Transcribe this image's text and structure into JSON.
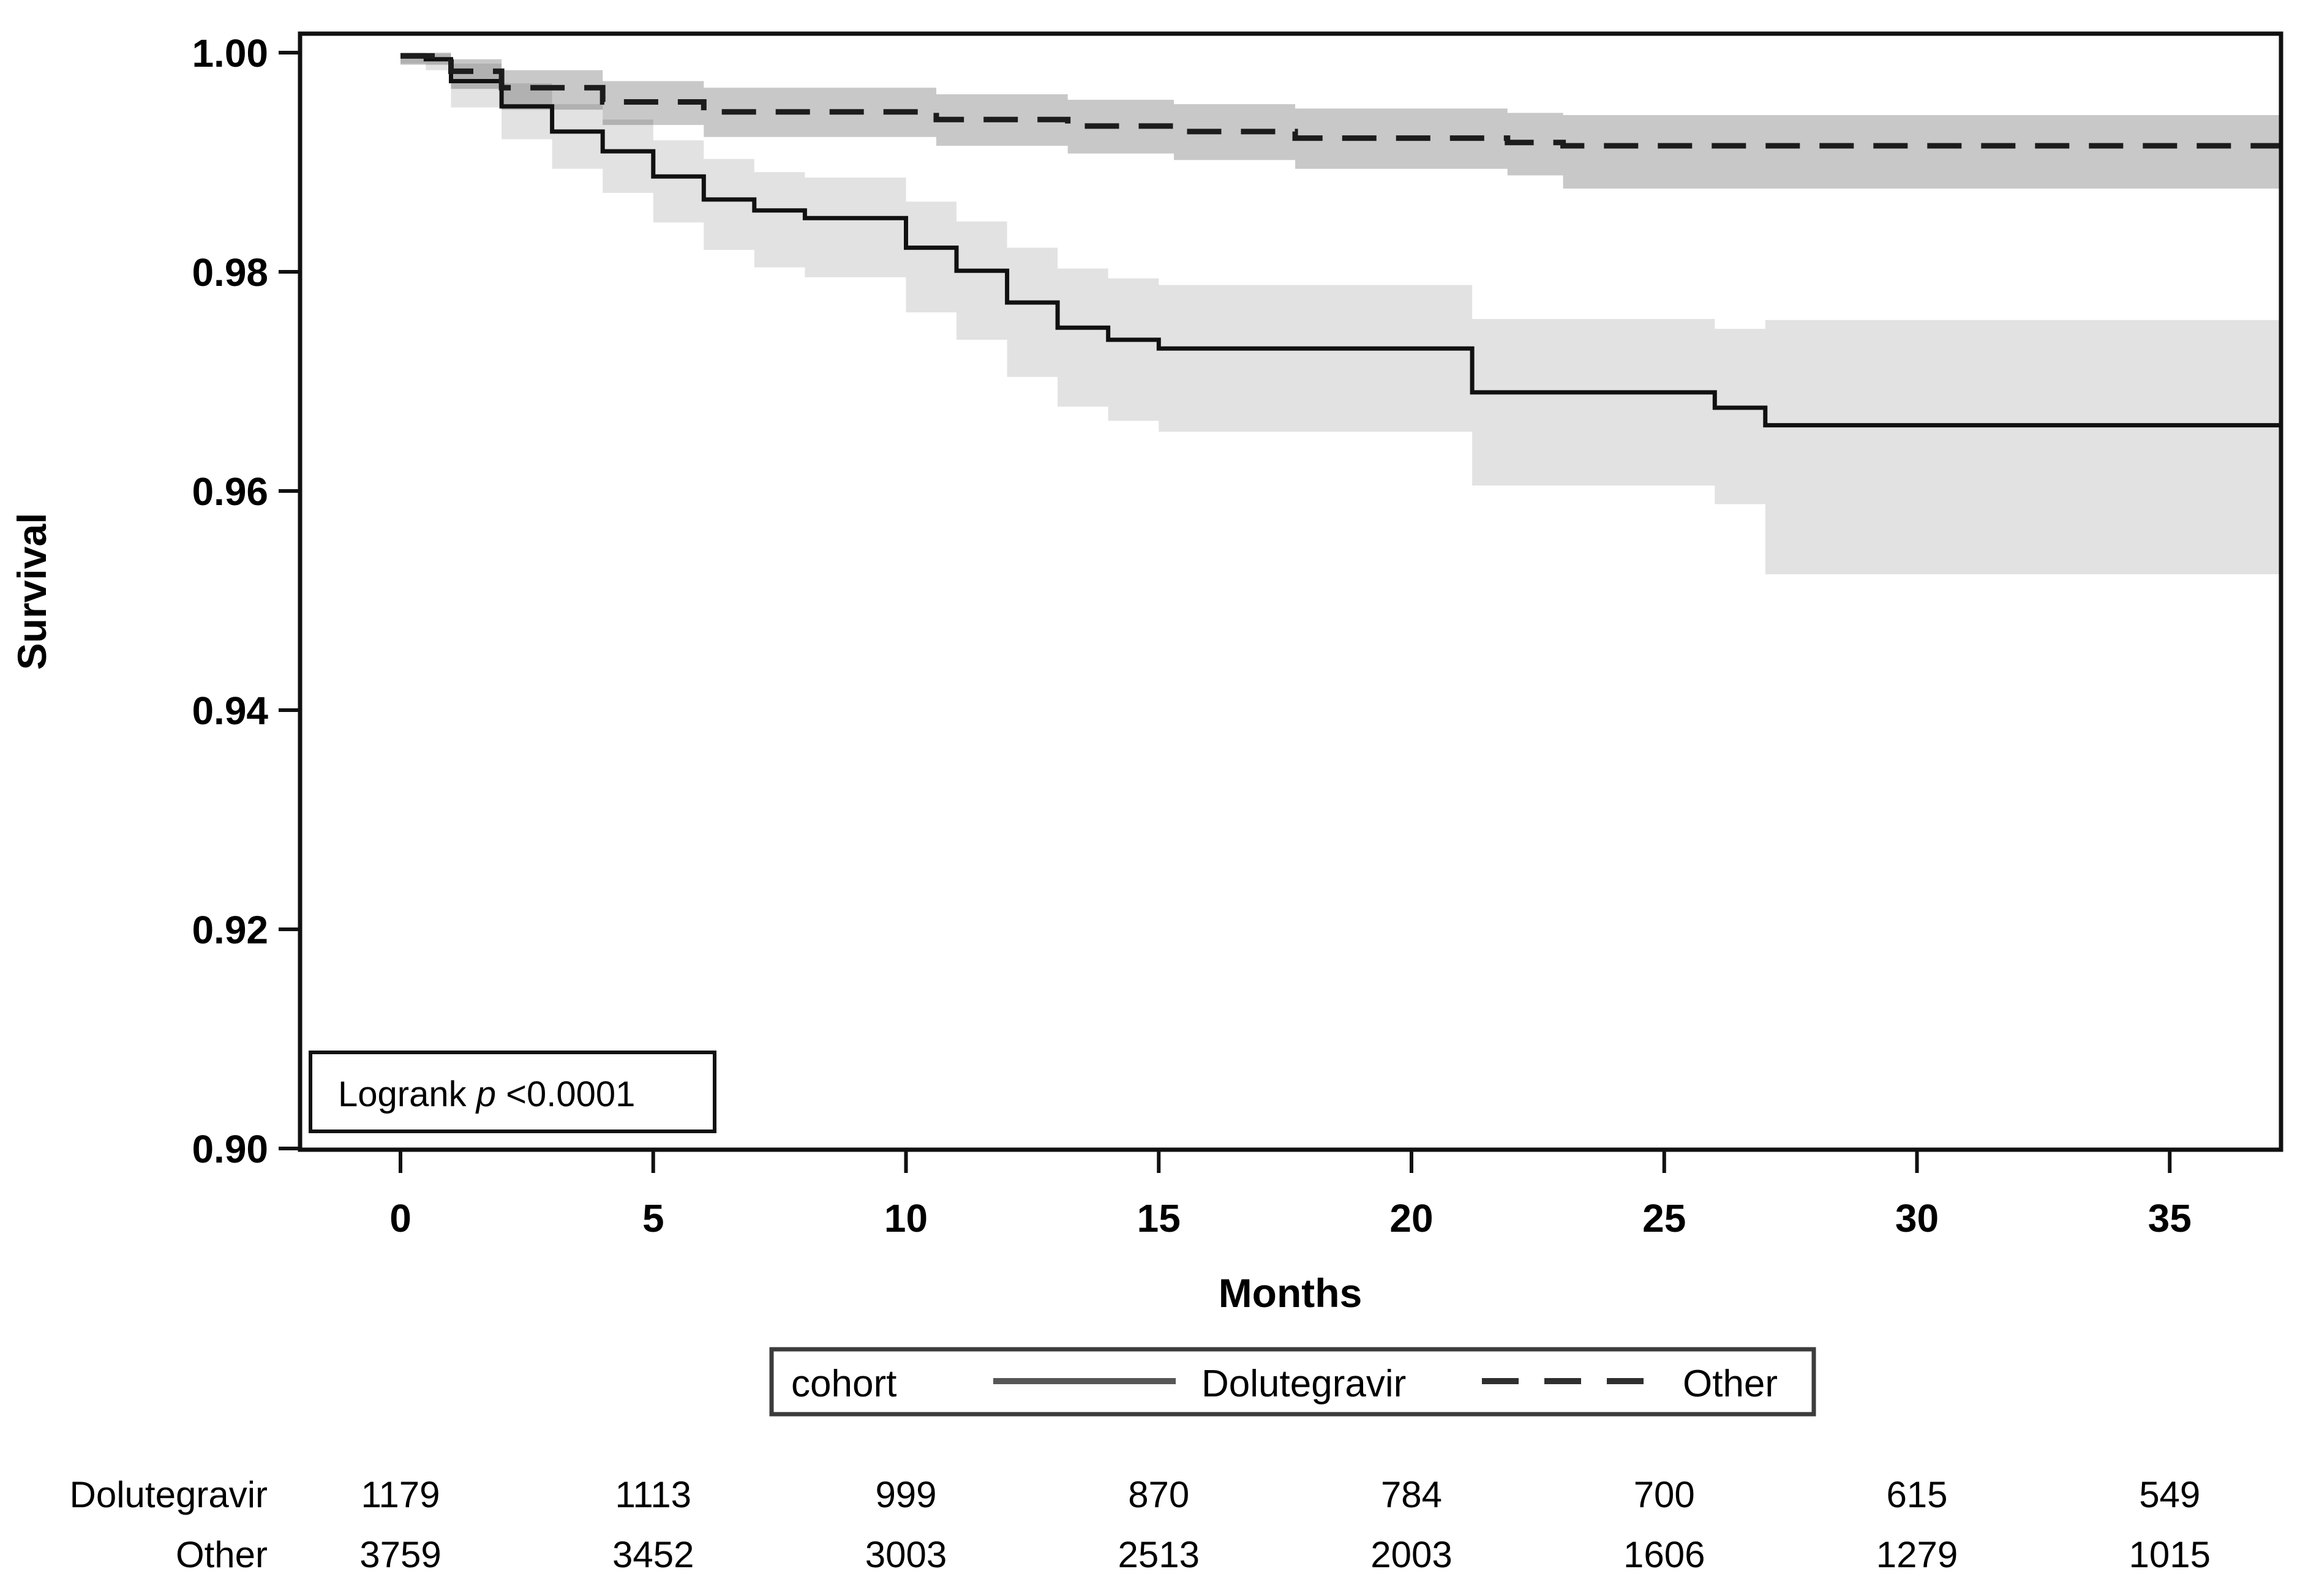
{
  "chart_data": {
    "type": "line",
    "subtype": "kaplan-meier-step",
    "xlabel": "Months",
    "ylabel": "Survival",
    "xlim": [
      0,
      37.2
    ],
    "ylim": [
      0.9,
      1.0
    ],
    "xticks": [
      0,
      5,
      10,
      15,
      20,
      25,
      30,
      35
    ],
    "yticks": [
      "1.00",
      "0.98",
      "0.96",
      "0.94",
      "0.92",
      "0.90"
    ],
    "ytick_values": [
      1.0,
      0.98,
      0.96,
      0.94,
      0.92,
      0.9
    ],
    "grid": false,
    "annotation": {
      "prefix": "Logrank ",
      "p": "p",
      "suffix": " <0.0001"
    },
    "legend": {
      "title": "cohort",
      "position": "bottom",
      "items": [
        {
          "label": "Dolutegravir",
          "style": "solid"
        },
        {
          "label": "Other",
          "style": "dashed"
        }
      ]
    },
    "colors": {
      "solid_line": "#111111",
      "dashed_line": "#1c1c1c",
      "dolutegravir_band": "rgba(0,0,0,0.115)",
      "other_band": "rgba(0,0,0,0.215)",
      "axis": "#111111"
    },
    "series": [
      {
        "name": "Dolutegravir",
        "line": "solid",
        "steps": [
          [
            0,
            0.9997
          ],
          [
            0.5,
            0.9994
          ],
          [
            1,
            0.9974
          ],
          [
            2,
            0.9951
          ],
          [
            3,
            0.9928
          ],
          [
            4,
            0.991
          ],
          [
            5,
            0.9887
          ],
          [
            6,
            0.9866
          ],
          [
            7,
            0.9856
          ],
          [
            8,
            0.9849
          ],
          [
            10,
            0.9822
          ],
          [
            11,
            0.9801
          ],
          [
            12,
            0.9772
          ],
          [
            13,
            0.9749
          ],
          [
            14,
            0.9738
          ],
          [
            15,
            0.973
          ],
          [
            21.2,
            0.969
          ],
          [
            26,
            0.9676
          ],
          [
            27,
            0.966
          ]
        ],
        "band_upper": [
          [
            0,
            1.0
          ],
          [
            0.5,
            0.9999
          ],
          [
            1,
            0.999
          ],
          [
            2,
            0.9972
          ],
          [
            3,
            0.9953
          ],
          [
            4,
            0.9939
          ],
          [
            5,
            0.992
          ],
          [
            6,
            0.9903
          ],
          [
            7,
            0.9891
          ],
          [
            8,
            0.9886
          ],
          [
            10,
            0.9864
          ],
          [
            11,
            0.9846
          ],
          [
            12,
            0.9822
          ],
          [
            13,
            0.9803
          ],
          [
            14,
            0.9794
          ],
          [
            15,
            0.9788
          ],
          [
            21.2,
            0.9757
          ],
          [
            26,
            0.9748
          ],
          [
            27,
            0.9756
          ]
        ],
        "band_lower": [
          [
            0,
            0.999
          ],
          [
            0.5,
            0.9984
          ],
          [
            1,
            0.995
          ],
          [
            2,
            0.9921
          ],
          [
            3,
            0.9894
          ],
          [
            4,
            0.9872
          ],
          [
            5,
            0.9845
          ],
          [
            6,
            0.982
          ],
          [
            7,
            0.9804
          ],
          [
            8,
            0.9795
          ],
          [
            10,
            0.9763
          ],
          [
            11,
            0.9738
          ],
          [
            12,
            0.9704
          ],
          [
            13,
            0.9677
          ],
          [
            14,
            0.9664
          ],
          [
            15,
            0.9654
          ],
          [
            21.2,
            0.9605
          ],
          [
            26,
            0.9588
          ],
          [
            27,
            0.9524
          ]
        ]
      },
      {
        "name": "Other",
        "line": "dashed",
        "steps": [
          [
            0,
            0.9997
          ],
          [
            1,
            0.9983
          ],
          [
            2,
            0.9968
          ],
          [
            4,
            0.9955
          ],
          [
            6,
            0.9946
          ],
          [
            10.6,
            0.9939
          ],
          [
            13.2,
            0.9933
          ],
          [
            15.3,
            0.9928
          ],
          [
            17.7,
            0.9922
          ],
          [
            21.9,
            0.9918
          ],
          [
            23,
            0.9915
          ]
        ],
        "band_upper": [
          [
            0,
            1.0
          ],
          [
            1,
            0.9994
          ],
          [
            2,
            0.9984
          ],
          [
            4,
            0.9974
          ],
          [
            6,
            0.9968
          ],
          [
            10.6,
            0.9962
          ],
          [
            13.2,
            0.9957
          ],
          [
            15.3,
            0.9953
          ],
          [
            17.7,
            0.9949
          ],
          [
            21.9,
            0.9945
          ],
          [
            23,
            0.9943
          ]
        ],
        "band_lower": [
          [
            0,
            0.9989
          ],
          [
            1,
            0.9967
          ],
          [
            2,
            0.9948
          ],
          [
            4,
            0.9934
          ],
          [
            6,
            0.9923
          ],
          [
            10.6,
            0.9915
          ],
          [
            13.2,
            0.9908
          ],
          [
            15.3,
            0.9902
          ],
          [
            17.7,
            0.9894
          ],
          [
            21.9,
            0.9888
          ],
          [
            23,
            0.9876
          ]
        ]
      }
    ],
    "risk_table": {
      "months": [
        0,
        5,
        10,
        15,
        20,
        25,
        30,
        35
      ],
      "rows": [
        {
          "label": "Dolutegravir",
          "counts": [
            1179,
            1113,
            999,
            870,
            784,
            700,
            615,
            549
          ]
        },
        {
          "label": "Other",
          "counts": [
            3759,
            3452,
            3003,
            2513,
            2003,
            1606,
            1279,
            1015
          ]
        }
      ]
    }
  }
}
